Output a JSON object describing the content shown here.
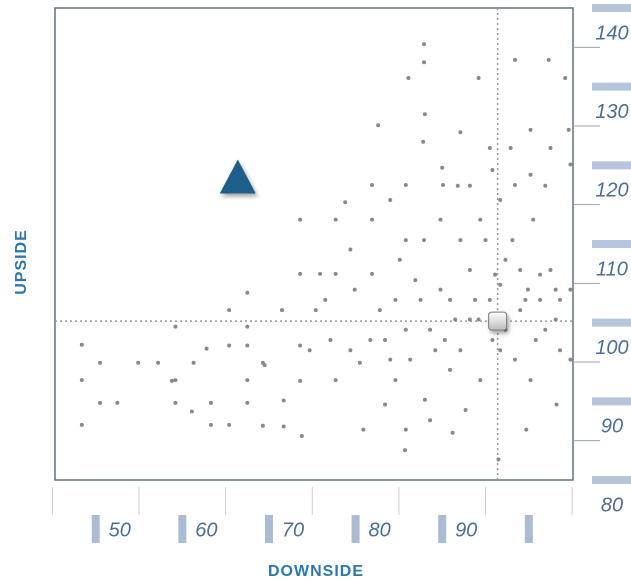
{
  "chart_data": {
    "type": "scatter",
    "x_label": "DOWNSIDE",
    "y_label": "UPSIDE",
    "xlim": [
      45.3,
      105.1
    ],
    "ylim": [
      80,
      140
    ],
    "xticks": [
      50,
      60,
      70,
      80,
      90,
      {
        "value": 100,
        "label": null
      }
    ],
    "yticks": [
      80,
      90,
      100,
      110,
      120,
      130,
      140
    ],
    "x_minor_ticks": [
      45,
      55,
      65,
      75,
      85,
      95,
      105
    ],
    "y_minor_ticks": [
      85,
      95,
      105,
      115,
      125,
      135
    ],
    "point_color": "#8a8a8a",
    "crosshair": {
      "x": 96.4,
      "y": 100.2
    },
    "triangle_marker": {
      "x": 66.4,
      "y": 118.2,
      "color": "#1d5f8c"
    },
    "x": [
      48.4,
      48.4,
      48.4,
      50.5,
      50.5,
      52.5,
      54.9,
      57.2,
      58.8,
      59.2,
      59.2,
      59.2,
      61.1,
      61.3,
      62.8,
      63.3,
      63.3,
      65.4,
      65.4,
      65.4,
      67.5,
      67.5,
      67.5,
      67.5,
      67.5,
      69.3,
      69.5,
      69.3,
      71.5,
      71.7,
      71.7,
      73.6,
      73.6,
      73.6,
      73.6,
      73.8,
      75.4,
      75.9,
      76.5,
      77.7,
      77.7,
      77.7,
      78.8,
      79.4,
      79.9,
      80.5,
      80.9,
      81.9,
      81.9,
      82.6,
      81.9,
      82.8,
      83.4,
      84.0,
      84.6,
      85.7,
      85.8,
      85.8,
      85.8,
      85.8,
      86.1,
      87.8,
      87.9,
      87.9,
      87.9,
      88.0,
      88.0,
      89.8,
      90.0,
      90.1,
      90.9,
      91.2,
      91.8,
      92.1,
      92.1,
      93.2,
      93.8,
      94.2,
      94.4,
      95.0,
      95.5,
      95.8,
      95.8,
      96.1,
      96.5,
      96.7,
      97.3,
      97.9,
      98.1,
      98.4,
      98.4,
      99.6,
      99.7,
      100.2,
      100.2,
      100.5,
      101.3,
      101.9,
      102.3,
      102.5,
      103.1,
      103.2,
      103.6,
      104.2,
      104.6,
      104.8,
      104.8,
      104.8,
      89.8,
      88.6,
      86.9,
      84.6,
      83.4,
      92.1,
      93.2,
      94.4,
      96.7,
      99.0,
      100.8,
      102.5,
      101.3,
      99.0,
      97.3,
      95.5,
      93.2,
      90.9,
      92.7,
      88.6,
      86.3,
      85.1,
      87.5,
      90.3,
      98.4,
      100.2,
      101.9,
      103.6,
      103.1,
      99.9,
      96.7,
      94.2,
      91.5,
      89.2,
      84.0,
      81.7,
      79.4,
      77.1,
      74.7
    ],
    "y": [
      97.2,
      92.7,
      87.0,
      94.9,
      89.8,
      89.8,
      94.9,
      94.9,
      92.6,
      92.7,
      99.5,
      89.8,
      88.7,
      94.9,
      96.7,
      89.8,
      87.0,
      101.6,
      97.1,
      87.0,
      103.8,
      99.5,
      97.1,
      92.7,
      89.8,
      94.9,
      94.6,
      86.9,
      101.6,
      90.1,
      86.8,
      113.1,
      106.2,
      97.1,
      92.6,
      85.6,
      101.6,
      106.2,
      102.9,
      113.1,
      106.2,
      92.7,
      115.3,
      109.3,
      104.2,
      94.9,
      86.4,
      117.5,
      113.1,
      125.1,
      106.2,
      101.6,
      89.6,
      115.6,
      92.7,
      83.8,
      117.5,
      110.5,
      99.1,
      86.4,
      131.1,
      123.0,
      135.4,
      133.1,
      110.5,
      126.5,
      90.2,
      113.1,
      119.7,
      117.5,
      94.0,
      86.0,
      117.4,
      124.2,
      110.5,
      117.4,
      102.9,
      131.1,
      113.1,
      110.5,
      122.2,
      119.4,
      97.8,
      106.1,
      82.6,
      115.6,
      99.1,
      122.2,
      110.5,
      133.4,
      117.5,
      102.9,
      86.4,
      124.5,
      118.8,
      113.1,
      106.1,
      117.4,
      133.4,
      122.2,
      100.4,
      89.6,
      102.9,
      131.1,
      124.5,
      120.1,
      104.2,
      95.3,
      104.2,
      99.1,
      105.4,
      102.9,
      97.8,
      96.5,
      100.4,
      92.7,
      96.5,
      101.6,
      97.8,
      106.7,
      102.9,
      106.7,
      108.0,
      102.9,
      106.7,
      102.9,
      88.9,
      87.6,
      95.3,
      108.0,
      102.9,
      97.8,
      95.3,
      92.7,
      99.1,
      96.5,
      104.2,
      104.2,
      104.8,
      100.4,
      100.4,
      96.5,
      95.3,
      97.8,
      96.5,
      97.8,
      96.5
    ]
  }
}
